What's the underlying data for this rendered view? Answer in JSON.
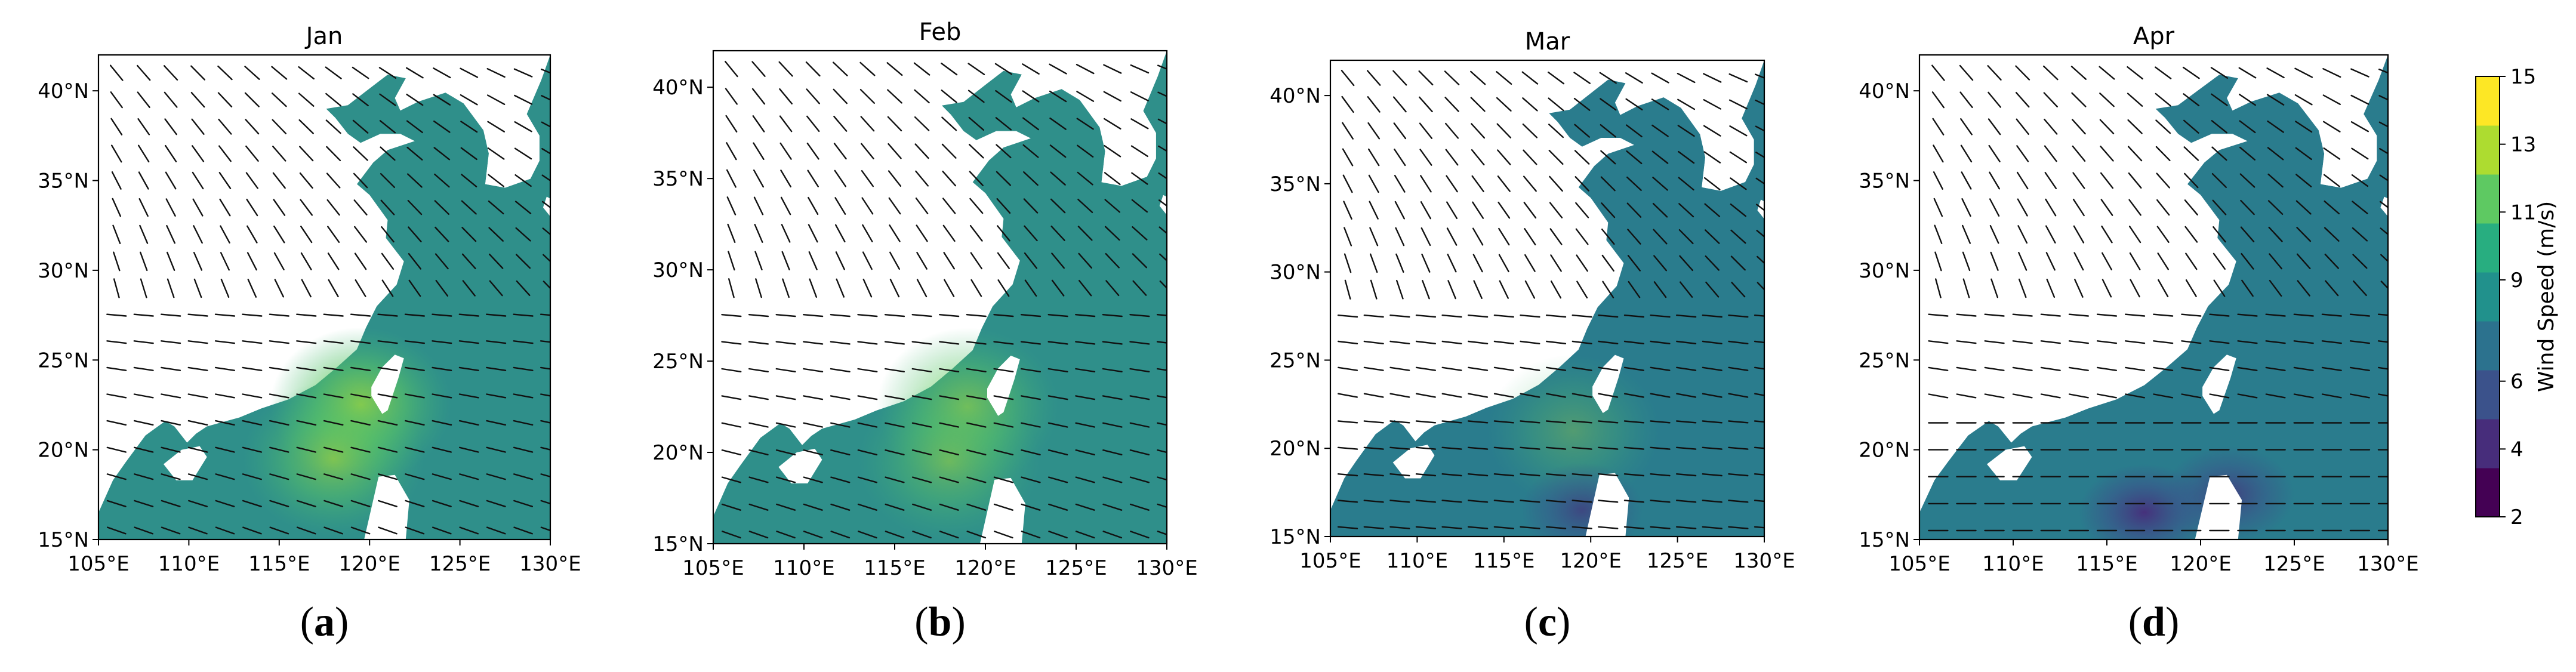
{
  "figure": {
    "caption_open": "(",
    "caption_close": ")"
  },
  "colorbar": {
    "label": "Wind Speed (m/s)",
    "ticks": [
      "2",
      "4",
      "6",
      "9",
      "11",
      "13",
      "15"
    ],
    "colors": [
      "#440154",
      "#472d7b",
      "#3b528b",
      "#2c728e",
      "#21918c",
      "#28ae80",
      "#5ec962",
      "#addc30",
      "#fde725"
    ]
  },
  "x_ticks": [
    "105°E",
    "110°E",
    "115°E",
    "120°E",
    "125°E",
    "130°E"
  ],
  "y_ticks": [
    "15°N",
    "20°N",
    "25°N",
    "30°N",
    "35°N",
    "40°N"
  ],
  "panels": [
    {
      "title": "Jan",
      "letter": "a"
    },
    {
      "title": "Feb",
      "letter": "b"
    },
    {
      "title": "Mar",
      "letter": "c"
    },
    {
      "title": "Apr",
      "letter": "d"
    }
  ]
}
